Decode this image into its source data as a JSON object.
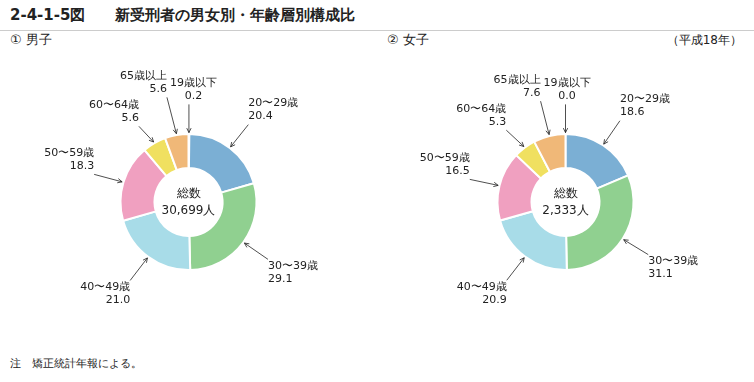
{
  "title": "2-4-1-5図　　新受刑者の男女別・年齢層別構成比",
  "subtitle": "（平成18年）",
  "annotations": [
    "注　矯正統計年報による。"
  ],
  "chart_data": [
    {
      "type": "doughnut",
      "subtitle": "① 男子",
      "annotations": [
        "総数\n30,699人"
      ],
      "categories": [
        "19歳以下",
        "20〜29歳",
        "30〜39歳",
        "40〜49歳",
        "50〜59歳",
        "60〜64歳",
        "65歳以上"
      ],
      "values": [
        0.2,
        20.4,
        29.1,
        21.0,
        18.3,
        5.6,
        5.6
      ],
      "value_labels": [
        "0.2",
        "20.4",
        "29.1",
        "21.0",
        "18.3",
        "5.6",
        "5.6"
      ],
      "colors": [
        "#a8c4e0",
        "#7bafd4",
        "#90d090",
        "#a8dce8",
        "#f0a0c0",
        "#f0e060",
        "#f0b878"
      ],
      "data_labels": true
    },
    {
      "type": "doughnut",
      "subtitle": "② 女子",
      "annotations": [
        "総数\n2,333人"
      ],
      "categories": [
        "19歳以下",
        "20〜29歳",
        "30〜39歳",
        "40〜49歳",
        "50〜59歳",
        "60〜64歳",
        "65歳以上"
      ],
      "values": [
        0.0,
        18.6,
        31.1,
        20.9,
        16.5,
        5.3,
        7.6
      ],
      "value_labels": [
        "0.0",
        "18.6",
        "31.1",
        "20.9",
        "16.5",
        "5.3",
        "7.6"
      ],
      "colors": [
        "#a8c4e0",
        "#7bafd4",
        "#90d090",
        "#a8dce8",
        "#f0a0c0",
        "#f0e060",
        "#f0b878"
      ],
      "data_labels": true
    }
  ]
}
